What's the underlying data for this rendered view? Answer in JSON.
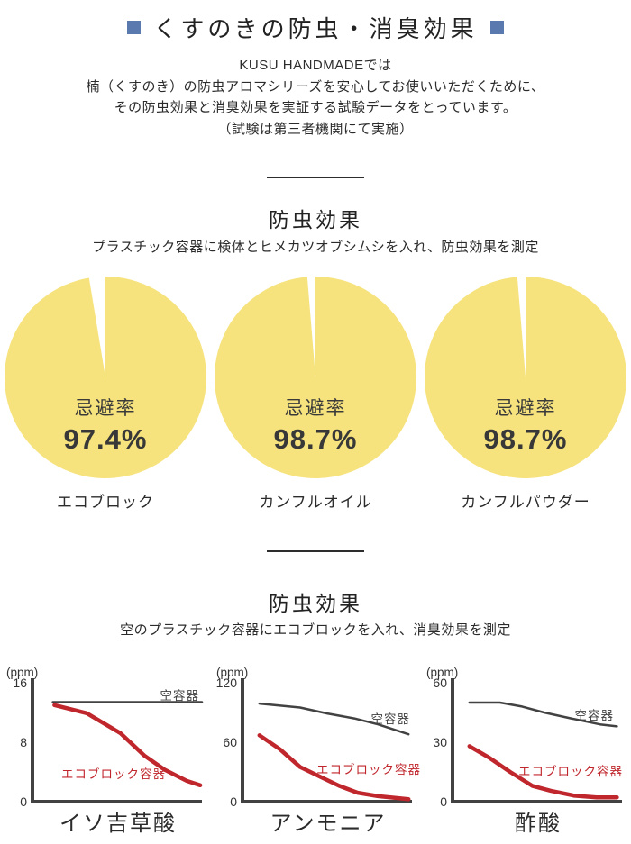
{
  "header": {
    "title": "くすのきの防虫・消臭効果",
    "square_color": "#5a79ae"
  },
  "intro": {
    "lines": [
      "KUSU HANDMADEでは",
      "楠（くすのき）の防虫アロマシリーズを安心してお使いいただくために、",
      "その防虫効果と消臭効果を実証する試験データをとっています。",
      "（試験は第三者機関にて実施）"
    ]
  },
  "section_repellent": {
    "title": "防虫効果",
    "subtitle": "プラスチック容器に検体とヒメカツオブシムシを入れ、防虫効果を測定"
  },
  "section_deodorant": {
    "title": "防虫効果",
    "subtitle": "空のプラスチック容器にエコブロックを入れ、消臭効果を測定"
  },
  "colors": {
    "pie_yellow": "#f6e37d",
    "red_line": "#c0272d",
    "dark_line": "#424242",
    "text_dark": "#333333"
  },
  "chart_data": [
    {
      "type": "pie",
      "title": "エコブロック",
      "center_label": "忌避率",
      "value": 97.4,
      "value_label": "97.4%",
      "color": "#f6e37d"
    },
    {
      "type": "pie",
      "title": "カンフルオイル",
      "center_label": "忌避率",
      "value": 98.7,
      "value_label": "98.7%",
      "color": "#f6e37d"
    },
    {
      "type": "pie",
      "title": "カンフルパウダー",
      "center_label": "忌避率",
      "value": 98.7,
      "value_label": "98.7%",
      "color": "#f6e37d"
    },
    {
      "type": "line",
      "title": "イソ吉草酸",
      "ylabel": "(ppm)",
      "ylim": [
        0,
        16
      ],
      "yticks": [
        16,
        8,
        0
      ],
      "series": [
        {
          "name": "空容器",
          "color": "#424242",
          "width": 2.5,
          "label_anchor": "end",
          "label_pos": [
            221,
            44
          ],
          "points": [
            [
              0.12,
              13.4
            ],
            [
              1.0,
              13.4
            ]
          ]
        },
        {
          "name": "エコブロック容器",
          "color": "#c0272d",
          "width": 4.5,
          "label_anchor": "middle",
          "label_pos": [
            126,
            131
          ],
          "points": [
            [
              0.13,
              13.0
            ],
            [
              0.32,
              11.9
            ],
            [
              0.52,
              9.2
            ],
            [
              0.66,
              6.2
            ],
            [
              0.78,
              4.3
            ],
            [
              0.91,
              2.8
            ],
            [
              0.99,
              2.2
            ]
          ]
        }
      ]
    },
    {
      "type": "line",
      "title": "アンモニア",
      "ylabel": "(ppm)",
      "ylim": [
        0,
        120
      ],
      "yticks": [
        120,
        60,
        0
      ],
      "series": [
        {
          "name": "空容器",
          "color": "#424242",
          "width": 2.5,
          "label_anchor": "end",
          "label_pos": [
            222,
            70
          ],
          "points": [
            [
              0.1,
              99
            ],
            [
              0.34,
              95
            ],
            [
              0.5,
              89
            ],
            [
              0.66,
              84
            ],
            [
              0.8,
              78
            ],
            [
              0.98,
              68
            ]
          ]
        },
        {
          "name": "エコブロック容器",
          "color": "#c0272d",
          "width": 4.5,
          "label_anchor": "middle",
          "label_pos": [
            176,
            126
          ],
          "points": [
            [
              0.1,
              67
            ],
            [
              0.22,
              53
            ],
            [
              0.34,
              35
            ],
            [
              0.46,
              25
            ],
            [
              0.57,
              16
            ],
            [
              0.68,
              9
            ],
            [
              0.8,
              5.5
            ],
            [
              0.98,
              2.5
            ]
          ]
        }
      ]
    },
    {
      "type": "line",
      "title": "酢酸",
      "ylabel": "(ppm)",
      "ylim": [
        0,
        60
      ],
      "yticks": [
        60,
        30,
        0
      ],
      "series": [
        {
          "name": "空容器",
          "color": "#424242",
          "width": 2.5,
          "label_anchor": "end",
          "label_pos": [
            215,
            66
          ],
          "points": [
            [
              0.1,
              50
            ],
            [
              0.28,
              50
            ],
            [
              0.41,
              48
            ],
            [
              0.54,
              45
            ],
            [
              0.7,
              42
            ],
            [
              0.87,
              39
            ],
            [
              0.97,
              38
            ]
          ]
        },
        {
          "name": "エコブロック容器",
          "color": "#c0272d",
          "width": 4.5,
          "label_anchor": "middle",
          "label_pos": [
            167,
            128
          ],
          "points": [
            [
              0.1,
              28
            ],
            [
              0.22,
              22
            ],
            [
              0.34,
              15
            ],
            [
              0.47,
              8
            ],
            [
              0.58,
              5.5
            ],
            [
              0.72,
              3
            ],
            [
              0.85,
              2.2
            ],
            [
              0.97,
              2.2
            ]
          ]
        }
      ]
    }
  ]
}
